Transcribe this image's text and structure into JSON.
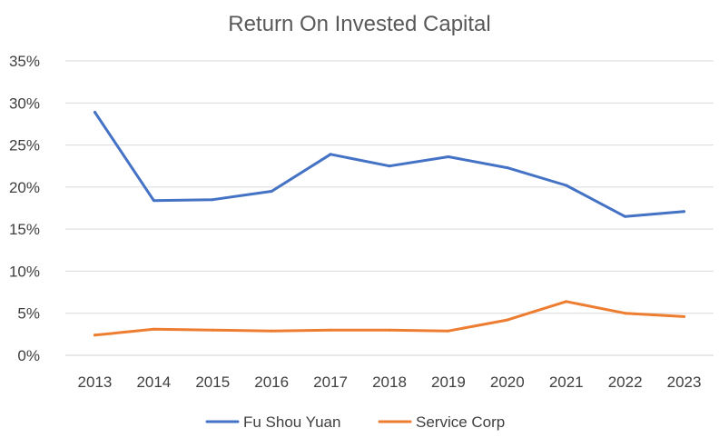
{
  "chart_data": {
    "type": "line",
    "title": "Return On Invested Capital",
    "xlabel": "",
    "ylabel": "",
    "categories": [
      "2013",
      "2014",
      "2015",
      "2016",
      "2017",
      "2018",
      "2019",
      "2020",
      "2021",
      "2022",
      "2023"
    ],
    "ylim": [
      0,
      35
    ],
    "yticks": [
      "0%",
      "5%",
      "10%",
      "15%",
      "20%",
      "25%",
      "30%",
      "35%"
    ],
    "grid": true,
    "legend_position": "bottom",
    "series": [
      {
        "name": "Fu Shou Yuan",
        "color": "#4472C4",
        "values": [
          28.9,
          18.4,
          18.5,
          19.5,
          23.9,
          22.5,
          23.6,
          22.3,
          20.2,
          16.5,
          17.1
        ]
      },
      {
        "name": "Service Corp",
        "color": "#ED7D31",
        "values": [
          2.4,
          3.1,
          3.0,
          2.9,
          3.0,
          3.0,
          2.9,
          4.2,
          6.4,
          5.0,
          4.6
        ]
      }
    ]
  }
}
